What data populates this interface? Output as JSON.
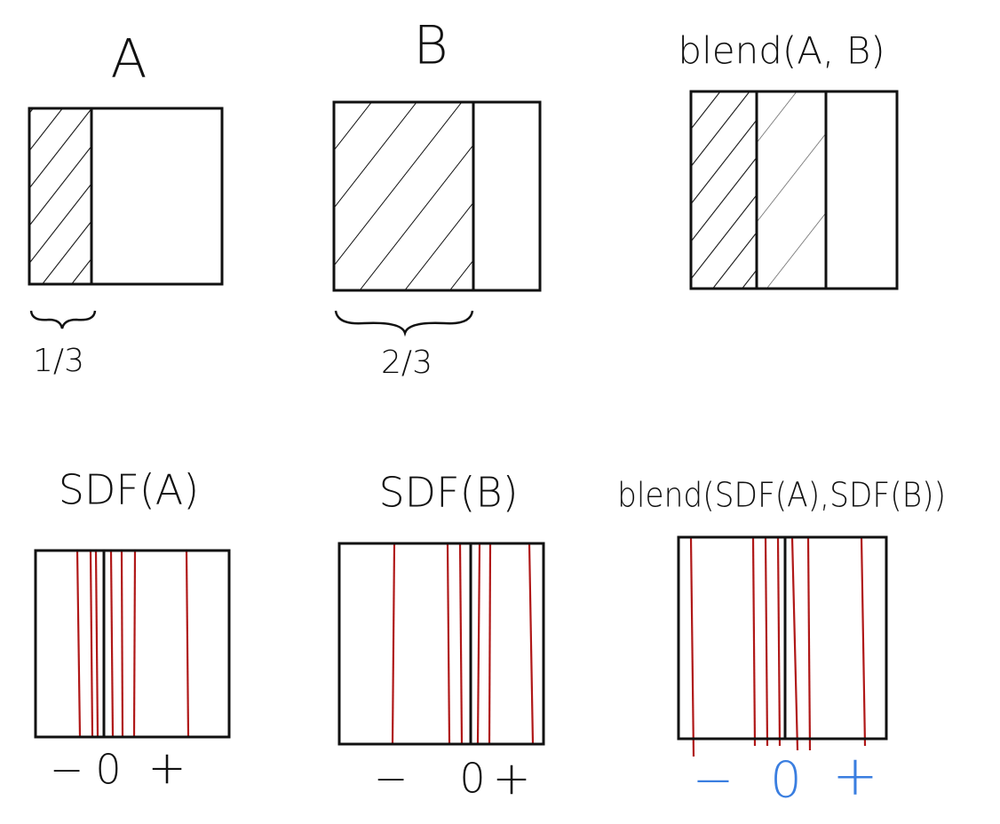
{
  "panels": [
    {
      "title": "A",
      "fraction": "1/3"
    },
    {
      "title": "B",
      "fraction": "2/3"
    },
    {
      "title": "blend(A, B)"
    }
  ],
  "sdf_panels": [
    {
      "title": "SDF(A)",
      "signs": [
        "−",
        "0",
        "+"
      ]
    },
    {
      "title": "SDF(B)",
      "signs": [
        "−",
        "0",
        "+"
      ]
    },
    {
      "title": "blend(SDF(A),SDF(B))",
      "signs": [
        "−",
        "0",
        "+"
      ]
    }
  ]
}
